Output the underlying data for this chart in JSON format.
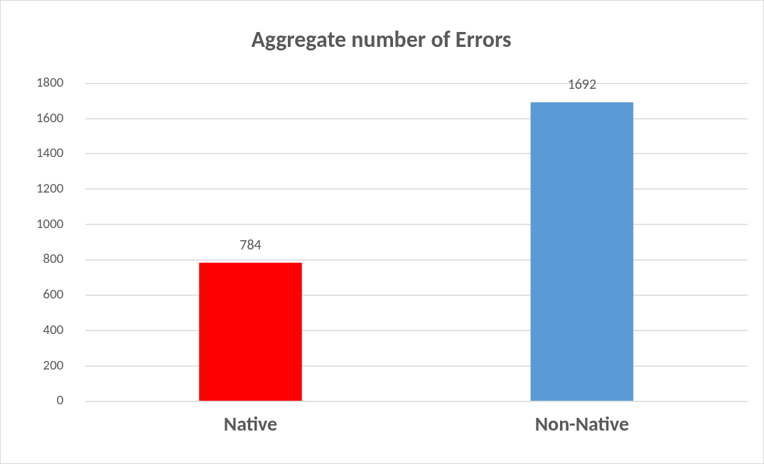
{
  "chart_data": {
    "type": "bar",
    "title": "Aggregate number of Errors",
    "categories": [
      "Native",
      "Non-Native"
    ],
    "values": [
      784,
      1692
    ],
    "colors": [
      "#ff0000",
      "#5b9bd5"
    ],
    "ylim": [
      0,
      1800
    ],
    "yticks": [
      0,
      200,
      400,
      600,
      800,
      1000,
      1200,
      1400,
      1600,
      1800
    ],
    "grid": "y",
    "data_labels": true
  }
}
